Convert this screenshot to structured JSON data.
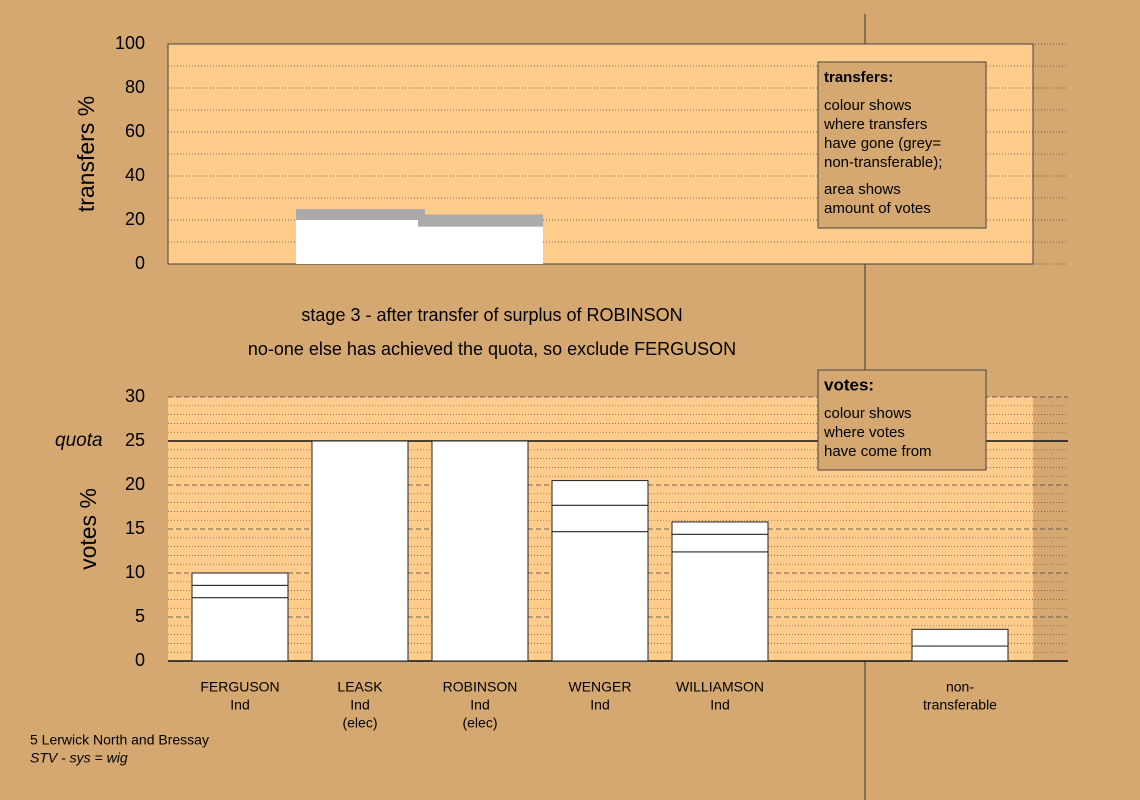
{
  "title_lines": [
    "stage 3 - after transfer of surplus of ROBINSON",
    "no-one else has achieved the quota, so exclude FERGUSON"
  ],
  "footer": {
    "place": "5 Lerwick North and Bressay",
    "system": "STV - sys = wig"
  },
  "chart_data": [
    {
      "type": "bar",
      "stacked": true,
      "ylabel": "transfers %",
      "ylim": [
        0,
        100
      ],
      "yticks": [
        0,
        20,
        40,
        60,
        80,
        100
      ],
      "grid": true,
      "categories": [
        null,
        null
      ],
      "series": [
        {
          "color": "#ffffff",
          "values": [
            20,
            17
          ]
        },
        {
          "color": "#aaaaaa",
          "values": [
            5,
            5.5
          ]
        }
      ],
      "legend": {
        "title": "transfers:",
        "lines": [
          "colour shows",
          "where transfers",
          "have gone (grey=",
          "non-transferable);",
          "area shows",
          "amount of votes"
        ]
      }
    },
    {
      "type": "bar",
      "stacked": true,
      "ylabel": "votes %",
      "ylim": [
        0,
        30
      ],
      "yticks": [
        0,
        5,
        10,
        15,
        20,
        25,
        30
      ],
      "grid": true,
      "quota": {
        "label": "quota",
        "value": 25
      },
      "categories": [
        [
          "FERGUSON",
          "Ind"
        ],
        [
          "LEASK",
          "Ind",
          "(elec)"
        ],
        [
          "ROBINSON",
          "Ind",
          "(elec)"
        ],
        [
          "WENGER",
          "Ind"
        ],
        [
          "WILLIAMSON",
          "Ind"
        ],
        null,
        [
          "non-",
          "transferable"
        ]
      ],
      "series": [
        {
          "color": "#ffffff",
          "values": [
            7.2,
            25,
            25,
            14.7,
            12.4,
            null,
            1.7
          ]
        },
        {
          "color": "#ffffff",
          "values": [
            1.4,
            null,
            null,
            3.0,
            2.0,
            null,
            1.9
          ]
        },
        {
          "color": "#ffffff",
          "values": [
            1.4,
            null,
            null,
            2.8,
            1.4,
            null,
            null
          ]
        }
      ],
      "legend": {
        "title": "votes:",
        "lines": [
          "colour shows",
          "where votes",
          "have come from"
        ]
      }
    }
  ]
}
